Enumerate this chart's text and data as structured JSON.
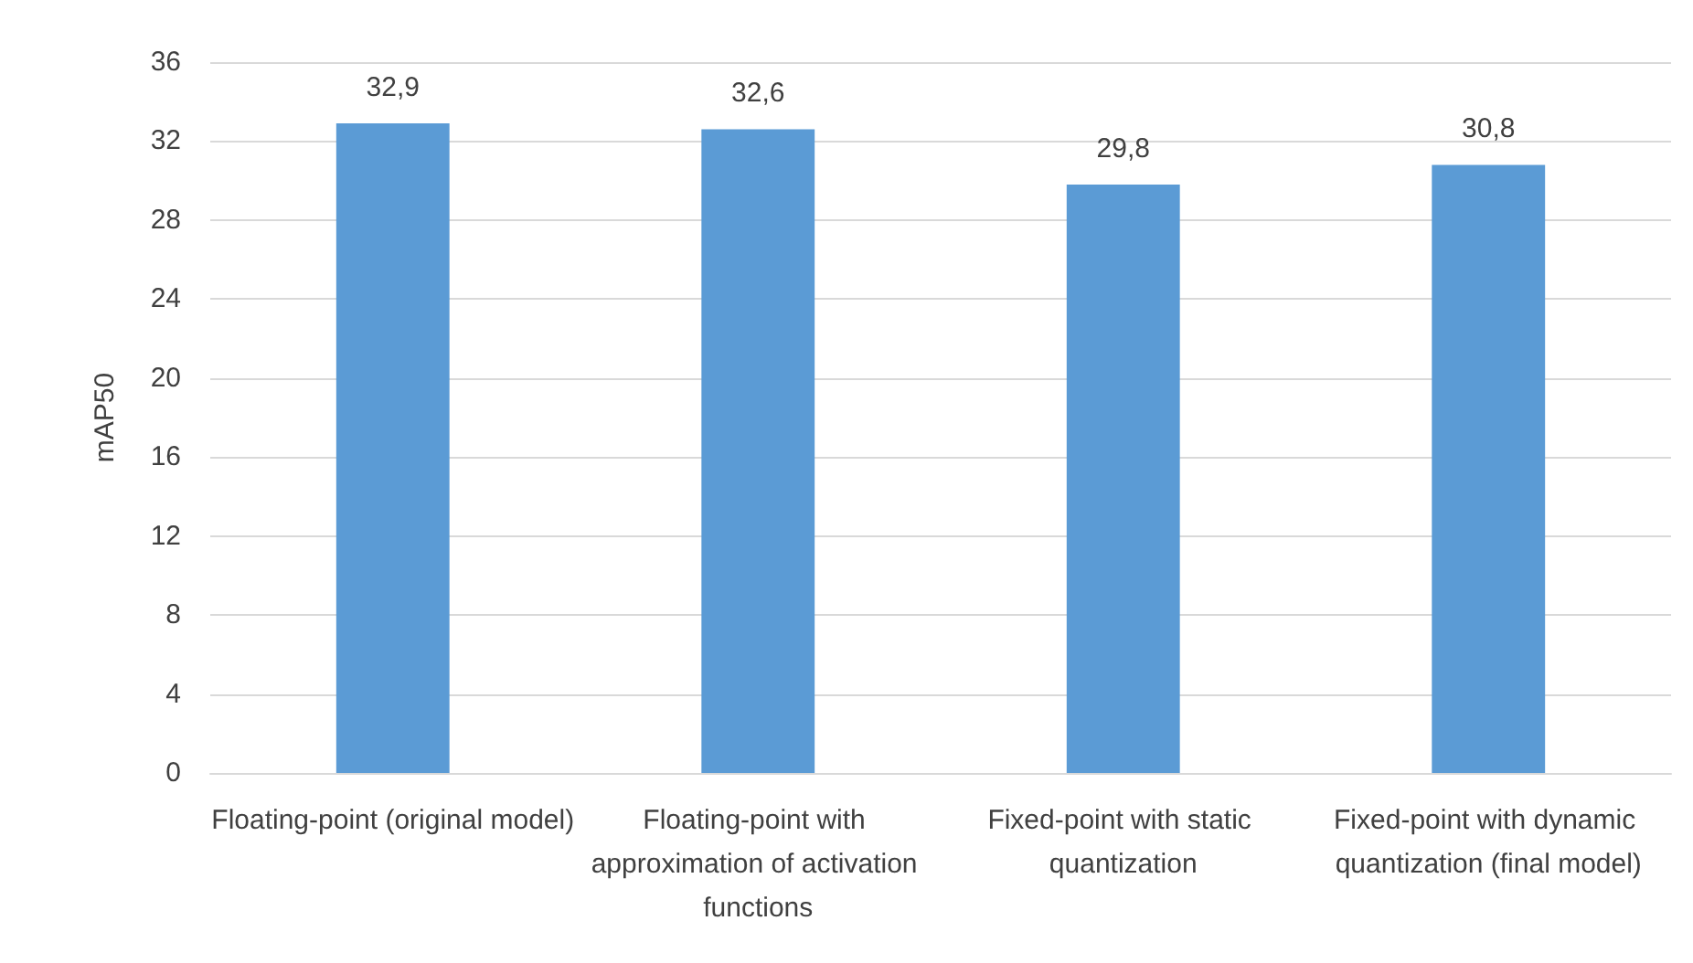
{
  "chart_data": {
    "type": "bar",
    "ylabel": "mAP50",
    "categories": [
      "Floating-point (original model)",
      "Floating-point with approximation of activation functions",
      "Fixed-point with static quantization",
      "Fixed-point with dynamic quantization (final model)"
    ],
    "values": [
      32.9,
      32.6,
      29.8,
      30.8
    ],
    "value_labels": [
      "32,9",
      "32,6",
      "29,8",
      "30,8"
    ],
    "color": "#5b9bd5",
    "ylim": [
      0,
      36
    ],
    "yticks": [
      0,
      4,
      8,
      12,
      16,
      20,
      24,
      28,
      32,
      36
    ],
    "grid": "y"
  }
}
